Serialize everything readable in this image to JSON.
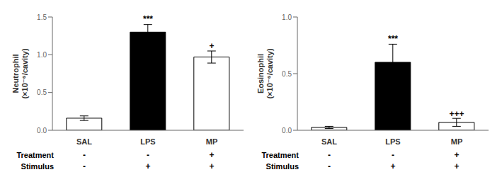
{
  "chart_data": [
    {
      "type": "bar",
      "categories": [
        "SAL",
        "LPS",
        "MP"
      ],
      "values": [
        0.16,
        1.3,
        0.97
      ],
      "errors": [
        0.03,
        0.1,
        0.08
      ],
      "colors": [
        "white",
        "black",
        "white"
      ],
      "ylabel": "Neutrophil\n(×10⁻⁶/cavity)",
      "ylim": [
        0,
        1.5
      ],
      "yticks": [
        {
          "value": 0.0,
          "label": "0.0"
        },
        {
          "value": 0.5,
          "label": "0.5"
        },
        {
          "value": 1.0,
          "label": "1.0"
        },
        {
          "value": 1.5,
          "label": "1.5"
        }
      ],
      "annotations": [
        {
          "text": "***",
          "x": "LPS",
          "y": 1.42
        },
        {
          "text": "+",
          "x": "MP",
          "y": 1.06
        }
      ],
      "table": [
        {
          "label": "Treatment",
          "values": [
            "-",
            "-",
            "+"
          ]
        },
        {
          "label": "Stimulus",
          "values": [
            "-",
            "+",
            "+"
          ]
        }
      ],
      "grid": false
    },
    {
      "type": "bar",
      "categories": [
        "SAL",
        "LPS",
        "MP"
      ],
      "values": [
        0.025,
        0.6,
        0.07
      ],
      "errors": [
        0.01,
        0.16,
        0.035
      ],
      "colors": [
        "white",
        "black",
        "white"
      ],
      "ylabel": "Eosinophil\n(×10⁻⁶/cavity)",
      "ylim": [
        0,
        1.0
      ],
      "yticks": [
        {
          "value": 0.0,
          "label": "0.0"
        },
        {
          "value": 0.5,
          "label": "0.5"
        },
        {
          "value": 1.0,
          "label": "1.0"
        }
      ],
      "annotations": [
        {
          "text": "***",
          "x": "LPS",
          "y": 0.77
        },
        {
          "text": "+++",
          "x": "MP",
          "y": 0.108
        }
      ],
      "table": [
        {
          "label": "Treatment",
          "values": [
            "-",
            "-",
            "+"
          ]
        },
        {
          "label": "Stimulus",
          "values": [
            "-",
            "+",
            "+"
          ]
        }
      ],
      "grid": false
    }
  ]
}
